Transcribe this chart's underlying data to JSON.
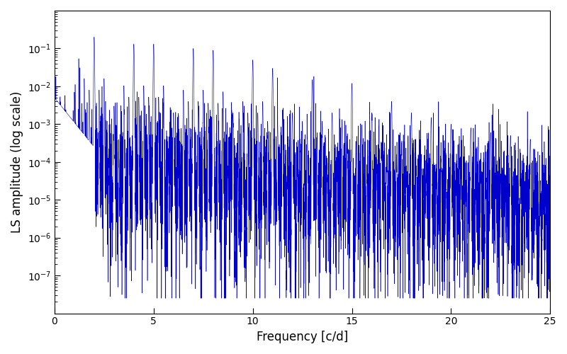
{
  "title": "",
  "xlabel": "Frequency [c/d]",
  "ylabel": "LS amplitude (log scale)",
  "line_color": "#0000cc",
  "xlim": [
    0,
    25
  ],
  "ylim": [
    1e-08,
    1.0
  ],
  "yticks": [
    1e-07,
    1e-06,
    1e-05,
    0.0001,
    0.001,
    0.01,
    0.1
  ],
  "xticks": [
    0,
    5,
    10,
    15,
    20,
    25
  ],
  "figsize": [
    8.0,
    5.0
  ],
  "dpi": 100,
  "seed": 12345,
  "n_points": 8000,
  "freq_max": 25.0,
  "linewidth": 0.4
}
